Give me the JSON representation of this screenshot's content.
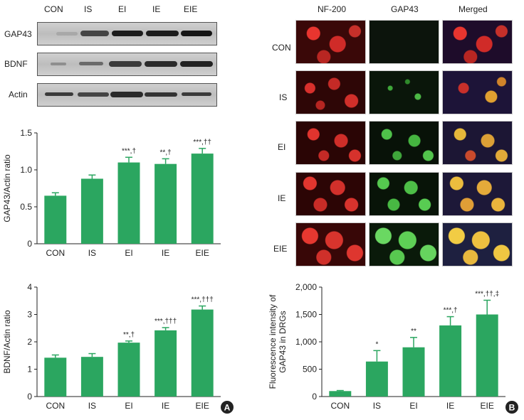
{
  "western_blot": {
    "lanes": [
      "CON",
      "IS",
      "EI",
      "IE",
      "EIE"
    ],
    "rows": [
      "GAP43",
      "BDNF",
      "Actin"
    ]
  },
  "micrographs": {
    "columns": [
      "NF-200",
      "GAP43",
      "Merged"
    ],
    "rows": [
      "CON",
      "IS",
      "EI",
      "IE",
      "EIE"
    ]
  },
  "panel_labels": {
    "a": "A",
    "b": "B"
  },
  "colors": {
    "bar": "#2ba660",
    "axis": "#222222"
  },
  "chart_data": [
    {
      "type": "bar",
      "categories": [
        "CON",
        "IS",
        "EI",
        "IE",
        "EIE"
      ],
      "values": [
        0.65,
        0.88,
        1.1,
        1.08,
        1.22
      ],
      "errors": [
        0.04,
        0.05,
        0.07,
        0.07,
        0.07
      ],
      "annotations": [
        "",
        "",
        "***,†",
        "**,†",
        "***,††"
      ],
      "ylabel": "GAP43/Actin ratio",
      "ylim": [
        0,
        1.5
      ],
      "yticks": [
        "0",
        "0.5",
        "1.0",
        "1.5"
      ],
      "ytick_values": [
        0,
        0.5,
        1.0,
        1.5
      ]
    },
    {
      "type": "bar",
      "categories": [
        "CON",
        "IS",
        "EI",
        "IE",
        "EIE"
      ],
      "values": [
        1.42,
        1.45,
        1.97,
        2.42,
        3.18
      ],
      "errors": [
        0.1,
        0.12,
        0.06,
        0.1,
        0.13
      ],
      "annotations": [
        "",
        "",
        "**,†",
        "***,†††",
        "***,†††"
      ],
      "ylabel": "BDNF/Actin ratio",
      "ylim": [
        0,
        4
      ],
      "yticks": [
        "0",
        "1",
        "2",
        "3",
        "4"
      ],
      "ytick_values": [
        0,
        1,
        2,
        3,
        4
      ]
    },
    {
      "type": "bar",
      "categories": [
        "CON",
        "IS",
        "EI",
        "IE",
        "EIE"
      ],
      "values": [
        100,
        640,
        900,
        1300,
        1500
      ],
      "errors": [
        10,
        200,
        180,
        160,
        260
      ],
      "annotations": [
        "",
        "*",
        "**",
        "***,†",
        "***,††,‡"
      ],
      "ylabel": "Fluorescence intensity of GAP43 in DRGs",
      "ylim": [
        0,
        2000
      ],
      "yticks": [
        "0",
        "500",
        "1,000",
        "1,500",
        "2,000"
      ],
      "ytick_values": [
        0,
        500,
        1000,
        1500,
        2000
      ]
    }
  ]
}
